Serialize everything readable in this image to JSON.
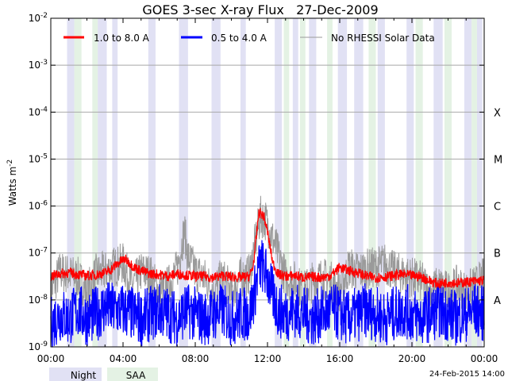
{
  "chart_data": {
    "type": "line",
    "title": "GOES 3-sec X-ray Flux   27-Dec-2009",
    "ylabel": "Watts m",
    "ylabel_exponent": "-2",
    "yscale": "log",
    "ylim": [
      1e-09,
      0.01
    ],
    "y_ticks": [
      {
        "base": "10",
        "exp": "-9",
        "value": 1e-09
      },
      {
        "base": "10",
        "exp": "-8",
        "value": 1e-08
      },
      {
        "base": "10",
        "exp": "-7",
        "value": 1e-07
      },
      {
        "base": "10",
        "exp": "-6",
        "value": 1e-06
      },
      {
        "base": "10",
        "exp": "-5",
        "value": 1e-05
      },
      {
        "base": "10",
        "exp": "-4",
        "value": 0.0001
      },
      {
        "base": "10",
        "exp": "-3",
        "value": 0.001
      },
      {
        "base": "10",
        "exp": "-2",
        "value": 0.01
      }
    ],
    "x_unit": "hours",
    "xlim": [
      0,
      24
    ],
    "x_ticks": [
      {
        "label": "00:00",
        "value": 0
      },
      {
        "label": "04:00",
        "value": 4
      },
      {
        "label": "08:00",
        "value": 8
      },
      {
        "label": "12:00",
        "value": 12
      },
      {
        "label": "16:00",
        "value": 16
      },
      {
        "label": "20:00",
        "value": 20
      },
      {
        "label": "00:00",
        "value": 24
      }
    ],
    "flare_classes": [
      {
        "label": "A",
        "value": 1e-08
      },
      {
        "label": "B",
        "value": 1e-07
      },
      {
        "label": "C",
        "value": 1e-06
      },
      {
        "label": "M",
        "value": 1e-05
      },
      {
        "label": "X",
        "value": 0.0001
      }
    ],
    "series": [
      {
        "name": "1.0 to 8.0 A",
        "color": "#ff0000",
        "x": [
          0,
          0.5,
          1,
          1.5,
          2,
          2.5,
          3,
          3.3,
          3.6,
          3.9,
          4.1,
          4.3,
          4.6,
          5,
          5.5,
          6,
          6.5,
          7,
          7.5,
          8,
          8.5,
          9,
          9.5,
          10,
          10.5,
          11,
          11.2,
          11.4,
          11.5,
          11.6,
          11.8,
          12,
          12.3,
          12.6,
          13,
          13.5,
          14,
          14.5,
          15,
          15.5,
          16,
          16.5,
          17,
          17.5,
          18,
          18.5,
          19,
          19.5,
          20,
          20.5,
          21,
          21.5,
          22,
          22.5,
          23,
          23.5,
          24
        ],
        "values": [
          3.2e-08,
          3.6e-08,
          3.8e-08,
          3.5e-08,
          3.3e-08,
          3.4e-08,
          3.8e-08,
          4.3e-08,
          5.5e-08,
          6.8e-08,
          7.4e-08,
          6.5e-08,
          5e-08,
          4.2e-08,
          3.6e-08,
          3.5e-08,
          3.2e-08,
          3.6e-08,
          3.4e-08,
          3.2e-08,
          3.2e-08,
          3e-08,
          3.3e-08,
          3.1e-08,
          3e-08,
          3.2e-08,
          5e-08,
          2.5e-07,
          6.5e-07,
          7.2e-07,
          6e-07,
          2.8e-07,
          6e-08,
          3.5e-08,
          3.2e-08,
          3.3e-08,
          3e-08,
          3.1e-08,
          3e-08,
          3.3e-08,
          5e-08,
          4.2e-08,
          3.8e-08,
          3.2e-08,
          3e-08,
          3.1e-08,
          3.3e-08,
          3.5e-08,
          3.3e-08,
          3.1e-08,
          2.5e-08,
          2.2e-08,
          2.4e-08,
          2.3e-08,
          2.4e-08,
          2.5e-08,
          2.6e-08
        ]
      },
      {
        "name": "0.5 to 4.0 A",
        "color": "#0000ff",
        "x": [
          0,
          0.5,
          1,
          1.5,
          2,
          2.5,
          3,
          3.5,
          4,
          4.5,
          5,
          5.5,
          6,
          6.5,
          7,
          7.5,
          8,
          8.5,
          9,
          9.5,
          10,
          10.5,
          11,
          11.3,
          11.5,
          11.7,
          12,
          12.3,
          12.6,
          13,
          13.5,
          14,
          14.5,
          15,
          15.5,
          16,
          16.5,
          17,
          17.5,
          18,
          18.5,
          19,
          19.5,
          20,
          20.5,
          21,
          21.5,
          22,
          22.5,
          23,
          23.5,
          24
        ],
        "values": [
          3e-09,
          5e-09,
          4e-09,
          6e-09,
          4e-09,
          5e-09,
          7e-09,
          6e-09,
          6e-09,
          5e-09,
          4e-09,
          5e-09,
          6e-09,
          5e-09,
          4e-09,
          6e-09,
          5e-09,
          4e-09,
          5e-09,
          6e-09,
          4e-09,
          5e-09,
          5e-09,
          1.5e-08,
          4.5e-08,
          5.5e-08,
          3e-08,
          1.2e-08,
          6e-09,
          5e-09,
          6e-09,
          5e-09,
          4e-09,
          5e-09,
          6e-09,
          5e-09,
          4e-09,
          5e-09,
          6e-09,
          5e-09,
          4e-09,
          5e-09,
          6e-09,
          5e-09,
          4e-09,
          5e-09,
          6e-09,
          5e-09,
          4e-09,
          5e-09,
          6e-09,
          5e-09
        ]
      },
      {
        "name": "No RHESSI Solar Data",
        "color": "#9a9a9a",
        "x": [
          0,
          0.5,
          1,
          1.5,
          2,
          2.5,
          3,
          3.5,
          4,
          4.5,
          5,
          5.5,
          6,
          6.5,
          7,
          7.2,
          7.4,
          7.6,
          7.8,
          8,
          8.5,
          9,
          9.5,
          10,
          10.5,
          11,
          11.3,
          11.6,
          11.9,
          12.2,
          12.5,
          13,
          13.5,
          14,
          14.5,
          15,
          15.5,
          16,
          16.5,
          17,
          17.5,
          18,
          18.5,
          19,
          19.5,
          20,
          20.5,
          21,
          21.5,
          22,
          22.5,
          23,
          23.5,
          24
        ],
        "values": [
          1.5e-08,
          4e-08,
          3.5e-08,
          3e-08,
          1.5e-08,
          3.5e-08,
          4e-08,
          5e-08,
          6e-08,
          2e-08,
          4e-08,
          3.5e-08,
          1.5e-08,
          2e-08,
          4.5e-08,
          1.2e-07,
          3e-07,
          8e-08,
          6e-08,
          4e-08,
          3e-08,
          1.5e-08,
          3e-08,
          1.5e-08,
          3e-08,
          3.5e-08,
          1.5e-07,
          6e-07,
          5e-07,
          2.5e-07,
          1.2e-07,
          3e-08,
          2.5e-08,
          1.5e-08,
          2.5e-08,
          3e-08,
          2.5e-08,
          1.5e-08,
          5e-08,
          4e-08,
          4.5e-08,
          5e-08,
          6e-08,
          4e-08,
          3.5e-08,
          3e-08,
          2.5e-08,
          1.5e-08,
          2e-08,
          1.5e-08,
          2e-08,
          1.5e-08,
          2e-08,
          3e-08
        ]
      }
    ],
    "night_intervals": [
      [
        0.9,
        1.3
      ],
      [
        2.6,
        3.1
      ],
      [
        3.4,
        3.7
      ],
      [
        5.4,
        5.8
      ],
      [
        7.1,
        7.6
      ],
      [
        8.9,
        9.4
      ],
      [
        10.5,
        10.8
      ],
      [
        12.4,
        12.8
      ],
      [
        13.4,
        13.7
      ],
      [
        14.3,
        14.7
      ],
      [
        15.9,
        16.4
      ],
      [
        16.8,
        17.3
      ],
      [
        18.1,
        18.5
      ],
      [
        19.7,
        20.1
      ],
      [
        21.2,
        21.7
      ],
      [
        22.9,
        23.3
      ],
      [
        23.6,
        23.9
      ]
    ],
    "saa_intervals": [
      [
        1.3,
        1.7
      ],
      [
        2.3,
        2.6
      ],
      [
        12.9,
        13.2
      ],
      [
        13.8,
        14.1
      ],
      [
        15.3,
        15.6
      ],
      [
        17.6,
        18.0
      ],
      [
        20.2,
        20.6
      ],
      [
        21.8,
        22.2
      ],
      [
        23.3,
        23.6
      ]
    ],
    "legend_position": "top",
    "bottom_legend": {
      "night": "Night",
      "saa": "SAA"
    },
    "timestamp": "24-Feb-2015 14:00"
  },
  "colors": {
    "night": "#e1e1f4",
    "saa": "#e4f2e4",
    "grid": "#a8a8a8",
    "red": "#ff0000",
    "blue": "#0000ff",
    "gray": "#9a9a9a"
  }
}
